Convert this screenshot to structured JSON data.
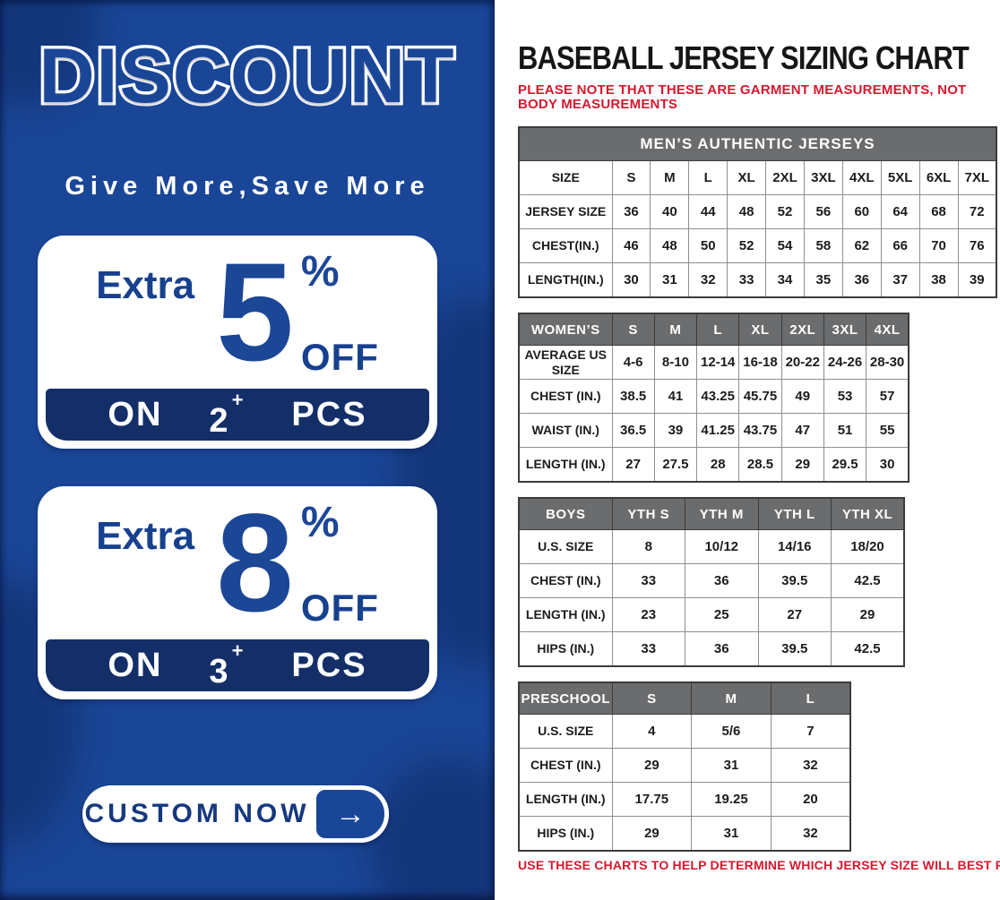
{
  "colors": {
    "promo_background_blue": "#1a4697",
    "promo_band_navy": "#142f68",
    "promo_text_blue": "#17418f",
    "table_header_gray": "#6b6c6e",
    "note_red": "#d6182e",
    "white": "#ffffff"
  },
  "promo": {
    "title": "DISCOUNT",
    "subtitle": "Give More,Save More",
    "offers": [
      {
        "prefix": "Extra",
        "value": "5",
        "percent_sign": "%",
        "suffix": "OFF",
        "on_label": "ON",
        "quantity": "2",
        "plus_sign": "+",
        "pcs_label": "PCS"
      },
      {
        "prefix": "Extra",
        "value": "8",
        "percent_sign": "%",
        "suffix": "OFF",
        "on_label": "ON",
        "quantity": "3",
        "plus_sign": "+",
        "pcs_label": "PCS"
      }
    ],
    "cta": {
      "label": "CUSTOM NOW",
      "arrow": "→"
    }
  },
  "chart": {
    "title": "BASEBALL JERSEY SIZING CHART",
    "note_top": "PLEASE NOTE THAT THESE ARE GARMENT MEASUREMENTS, NOT BODY MEASUREMENTS",
    "note_bottom": "USE THESE CHARTS TO HELP DETERMINE WHICH JERSEY SIZE WILL BEST FIT YOU.",
    "tables": [
      {
        "id": "mens",
        "merged_header": "MEN’S AUTHENTIC JERSEYS",
        "rows": [
          {
            "label": "SIZE",
            "values": [
              "S",
              "M",
              "L",
              "XL",
              "2XL",
              "3XL",
              "4XL",
              "5XL",
              "6XL",
              "7XL"
            ]
          },
          {
            "label": "JERSEY SIZE",
            "values": [
              "36",
              "40",
              "44",
              "48",
              "52",
              "56",
              "60",
              "64",
              "68",
              "72"
            ]
          },
          {
            "label": "CHEST(IN.)",
            "values": [
              "46",
              "48",
              "50",
              "52",
              "54",
              "58",
              "62",
              "66",
              "70",
              "76"
            ]
          },
          {
            "label": "LENGTH(IN.)",
            "values": [
              "30",
              "31",
              "32",
              "33",
              "34",
              "35",
              "36",
              "37",
              "38",
              "39"
            ]
          }
        ]
      },
      {
        "id": "womens",
        "header": {
          "label": "WOMEN’S",
          "values": [
            "S",
            "M",
            "L",
            "XL",
            "2XL",
            "3XL",
            "4XL"
          ]
        },
        "rows": [
          {
            "label": "AVERAGE US SIZE",
            "values": [
              "4-6",
              "8-10",
              "12-14",
              "16-18",
              "20-22",
              "24-26",
              "28-30"
            ]
          },
          {
            "label": "CHEST (IN.)",
            "values": [
              "38.5",
              "41",
              "43.25",
              "45.75",
              "49",
              "53",
              "57"
            ]
          },
          {
            "label": "WAIST (IN.)",
            "values": [
              "36.5",
              "39",
              "41.25",
              "43.75",
              "47",
              "51",
              "55"
            ]
          },
          {
            "label": "LENGTH (IN.)",
            "values": [
              "27",
              "27.5",
              "28",
              "28.5",
              "29",
              "29.5",
              "30"
            ]
          }
        ]
      },
      {
        "id": "boys",
        "header": {
          "label": "BOYS",
          "values": [
            "YTH S",
            "YTH M",
            "YTH L",
            "YTH XL"
          ]
        },
        "rows": [
          {
            "label": "U.S. SIZE",
            "values": [
              "8",
              "10/12",
              "14/16",
              "18/20"
            ]
          },
          {
            "label": "CHEST (IN.)",
            "values": [
              "33",
              "36",
              "39.5",
              "42.5"
            ]
          },
          {
            "label": "LENGTH (IN.)",
            "values": [
              "23",
              "25",
              "27",
              "29"
            ]
          },
          {
            "label": "HIPS (IN.)",
            "values": [
              "33",
              "36",
              "39.5",
              "42.5"
            ]
          }
        ]
      },
      {
        "id": "preschool",
        "header": {
          "label": "PRESCHOOL",
          "values": [
            "S",
            "M",
            "L"
          ]
        },
        "rows": [
          {
            "label": "U.S. SIZE",
            "values": [
              "4",
              "5/6",
              "7"
            ]
          },
          {
            "label": "CHEST (IN.)",
            "values": [
              "29",
              "31",
              "32"
            ]
          },
          {
            "label": "LENGTH (IN.)",
            "values": [
              "17.75",
              "19.25",
              "20"
            ]
          },
          {
            "label": "HIPS (IN.)",
            "values": [
              "29",
              "31",
              "32"
            ]
          }
        ]
      }
    ]
  }
}
